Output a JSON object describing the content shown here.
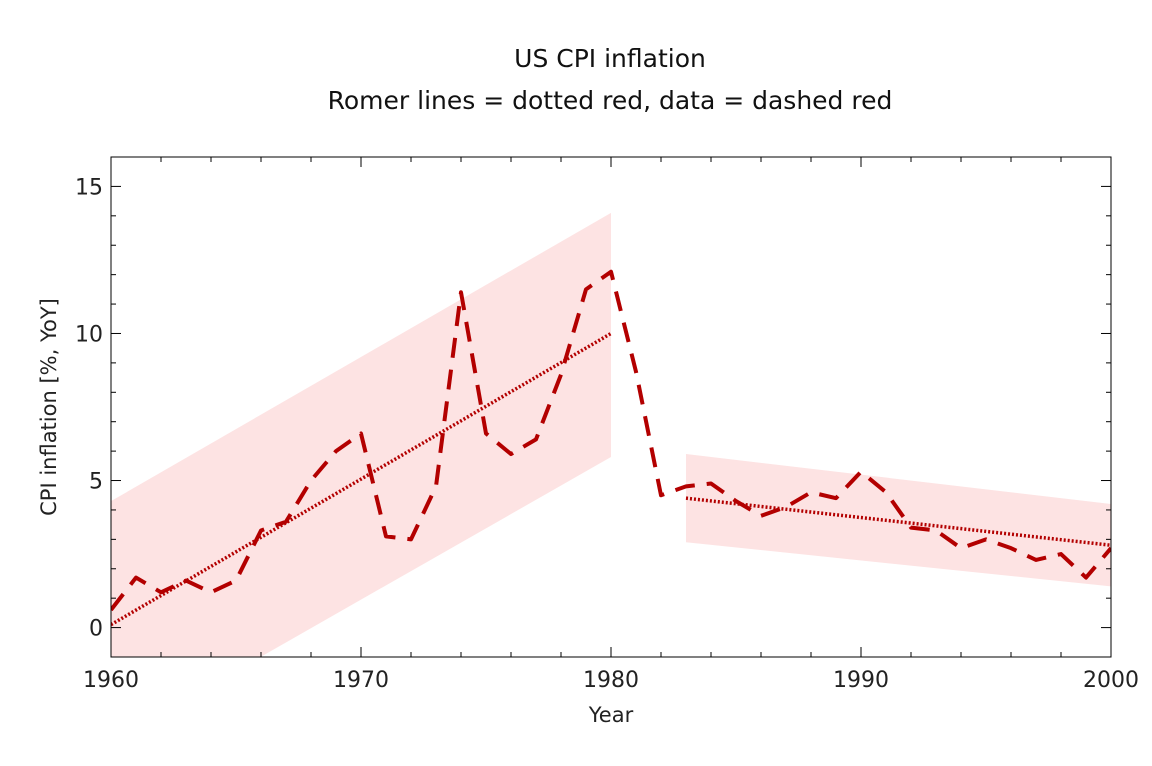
{
  "chart_data": {
    "type": "line",
    "title": "US CPI inflation",
    "subtitle": "Romer lines = dotted red, data = dashed red",
    "xlabel": "Year",
    "ylabel": "CPI inflation [%, YoY]",
    "xlim": [
      1960,
      2000
    ],
    "ylim": [
      -1,
      16
    ],
    "x_ticks": [
      1960,
      1970,
      1980,
      1990,
      2000
    ],
    "y_ticks": [
      0,
      5,
      10,
      15
    ],
    "grid": false,
    "legend": "none",
    "colors": {
      "data_line": "#b30000",
      "trend_line": "#b30000",
      "band_fill": "#fde3e3"
    },
    "data_series": {
      "style": "dashed",
      "x": [
        1960,
        1961,
        1962,
        1963,
        1964,
        1965,
        1966,
        1967,
        1968,
        1969,
        1970,
        1971,
        1972,
        1973,
        1974,
        1975,
        1976,
        1977,
        1978,
        1979,
        1980,
        1981,
        1982,
        1983,
        1984,
        1985,
        1986,
        1987,
        1988,
        1989,
        1990,
        1991,
        1992,
        1993,
        1994,
        1995,
        1996,
        1997,
        1998,
        1999,
        2000
      ],
      "y": [
        0.6,
        1.7,
        1.2,
        1.6,
        1.2,
        1.6,
        3.3,
        3.6,
        5.0,
        6.0,
        6.6,
        3.1,
        3.0,
        4.8,
        11.4,
        6.6,
        5.9,
        6.4,
        8.6,
        11.5,
        12.1,
        8.7,
        4.5,
        4.8,
        4.9,
        4.3,
        3.8,
        4.1,
        4.6,
        4.4,
        5.3,
        4.6,
        3.4,
        3.3,
        2.7,
        3.0,
        2.7,
        2.3,
        2.5,
        1.7,
        2.7
      ]
    },
    "trend_series": [
      {
        "style": "dotted",
        "x": [
          1960,
          1980
        ],
        "y": [
          0.1,
          10.0
        ]
      },
      {
        "style": "dotted",
        "x": [
          1983,
          2000
        ],
        "y": [
          4.4,
          2.8
        ]
      }
    ],
    "bands": [
      {
        "x": [
          1960,
          1980
        ],
        "upper": [
          4.3,
          14.1
        ],
        "lower": [
          -3.9,
          5.8
        ]
      },
      {
        "x": [
          1983,
          2000
        ],
        "upper": [
          5.9,
          4.2
        ],
        "lower": [
          2.9,
          1.4
        ]
      }
    ]
  }
}
